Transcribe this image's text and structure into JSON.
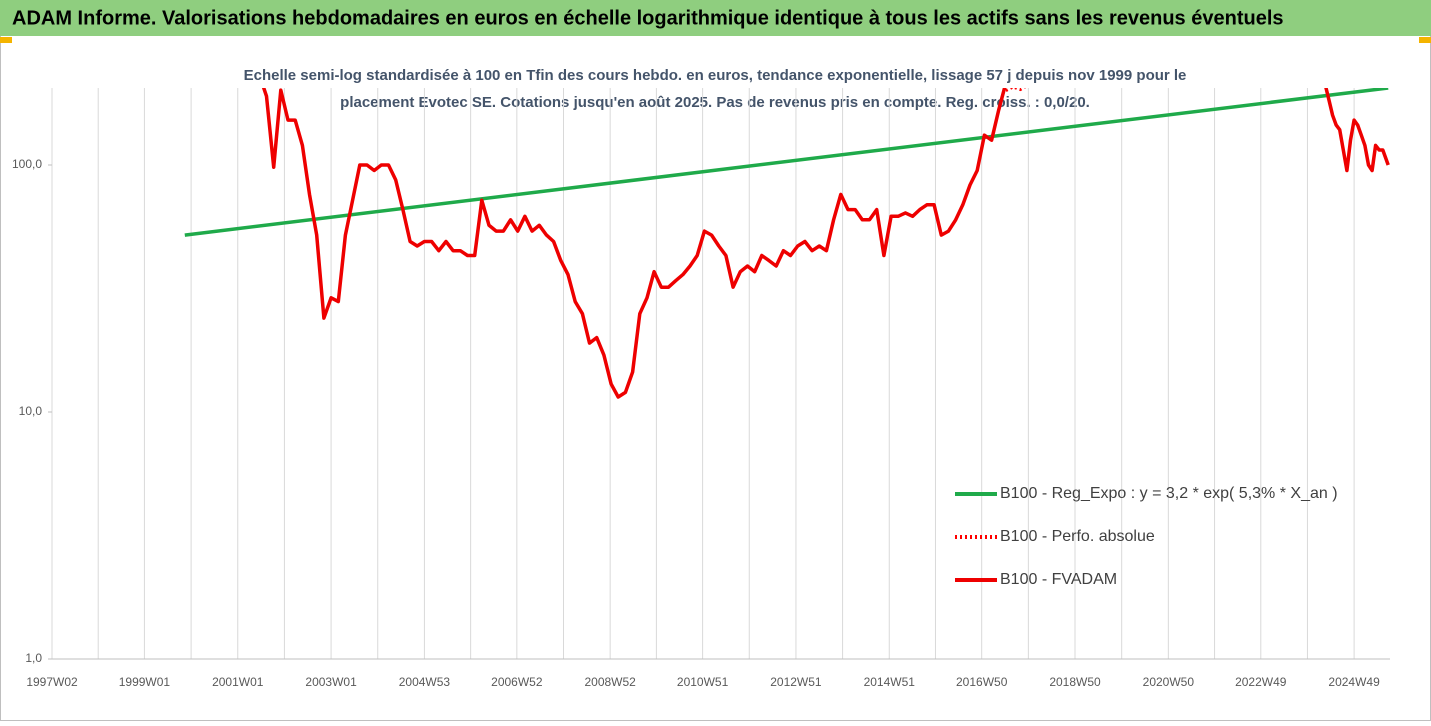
{
  "chart_data": {
    "type": "line",
    "title": "ADAM Informe. Valorisations hebdomadaires en euros en échelle logarithmique identique à tous les actifs sans les revenus éventuels",
    "subtitle": [
      "Echelle semi-log standardisée à 100 en Tfin des cours hebdo. en euros, tendance exponentielle, lissage 57 j depuis nov 1999 pour le",
      "placement Evotec SE. Cotations jusqu'en août 2025. Pas de revenus pris en compte. Reg. croiss. : 0,0/20."
    ],
    "log_y": true,
    "grid": "x",
    "legend": "lower right",
    "xlim": [
      "1997W02",
      "2025W37"
    ],
    "xticks": [
      "1997W02",
      "1999W01",
      "2001W01",
      "2003W01",
      "2004W53",
      "2006W52",
      "2008W52",
      "2010W51",
      "2012W51",
      "2014W51",
      "2016W50",
      "2018W50",
      "2020W50",
      "2022W49",
      "2024W49"
    ],
    "ylim": [
      1,
      205
    ],
    "yticks": [
      {
        "value": 1,
        "label": "1,0"
      },
      {
        "value": 10,
        "label": "10,0"
      },
      {
        "value": 100,
        "label": "100,0"
      }
    ],
    "series": [
      {
        "name": "B100 - Reg_Expo : y = 3,2 * exp( 5,3% *  X_an )",
        "color": "#1faa4a",
        "style": "solid",
        "x": [
          "1999W46",
          "2025W35"
        ],
        "values": [
          52,
          205
        ]
      },
      {
        "name": "B100 - Perfo. absolue",
        "color": "#ff0000",
        "style": "dotted",
        "x": [
          "2017W25",
          "2017W33",
          "2017W41",
          "2017W49"
        ],
        "values": [
          200,
          207,
          202,
          210
        ]
      },
      {
        "name": "B100 - FVADAM",
        "color": "#ee0000",
        "style": "solid",
        "x": [
          "2001W29",
          "2001W33",
          "2001W41",
          "2001W49",
          "2002W05",
          "2002W13",
          "2002W21",
          "2002W29",
          "2002W37",
          "2002W45",
          "2003W01",
          "2003W09",
          "2003W17",
          "2003W25",
          "2003W33",
          "2003W41",
          "2003W49",
          "2004W05",
          "2004W13",
          "2004W21",
          "2004W29",
          "2004W37",
          "2004W45",
          "2005W01",
          "2005W09",
          "2005W17",
          "2005W25",
          "2005W33",
          "2005W41",
          "2005W49",
          "2006W05",
          "2006W13",
          "2006W21",
          "2006W29",
          "2006W37",
          "2006W45",
          "2007W01",
          "2007W09",
          "2007W17",
          "2007W25",
          "2007W33",
          "2007W41",
          "2007W49",
          "2008W05",
          "2008W13",
          "2008W21",
          "2008W29",
          "2008W37",
          "2008W45",
          "2009W01",
          "2009W09",
          "2009W17",
          "2009W25",
          "2009W33",
          "2009W41",
          "2009W49",
          "2010W05",
          "2010W13",
          "2010W21",
          "2010W29",
          "2010W37",
          "2010W45",
          "2011W01",
          "2011W09",
          "2011W17",
          "2011W25",
          "2011W33",
          "2011W41",
          "2011W49",
          "2012W05",
          "2012W13",
          "2012W21",
          "2012W29",
          "2012W37",
          "2012W45",
          "2013W01",
          "2013W09",
          "2013W17",
          "2013W25",
          "2013W33",
          "2013W41",
          "2013W49",
          "2014W05",
          "2014W13",
          "2014W21",
          "2014W29",
          "2014W37",
          "2014W45",
          "2015W01",
          "2015W09",
          "2015W17",
          "2015W25",
          "2015W33",
          "2015W41",
          "2015W49",
          "2016W05",
          "2016W13",
          "2016W21",
          "2016W29",
          "2016W37",
          "2016W45",
          "2017W01",
          "2017W09",
          "2017W17",
          "2017W25",
          "2024W13",
          "2024W17",
          "2024W21",
          "2024W25",
          "2024W29",
          "2024W33",
          "2024W37",
          "2024W41",
          "2024W45",
          "2024W49",
          "2025W01",
          "2025W05",
          "2025W09",
          "2025W13",
          "2025W17",
          "2025W21",
          "2025W25",
          "2025W29",
          "2025W35"
        ],
        "values": [
          210,
          190,
          98,
          201,
          152,
          152,
          120,
          76,
          52,
          24,
          29,
          28,
          52,
          72,
          100,
          100,
          95,
          100,
          100,
          87,
          66,
          49,
          47,
          49,
          49,
          45,
          49,
          45,
          45,
          43,
          43,
          72,
          57,
          54,
          54,
          60,
          54,
          62,
          54,
          57,
          52,
          49,
          41,
          36,
          28,
          25,
          19,
          20,
          17,
          13,
          11.5,
          12,
          14.5,
          25,
          29,
          37,
          32,
          32,
          34,
          36,
          39,
          43,
          54,
          52,
          47,
          43,
          32,
          37,
          39,
          37,
          43,
          41,
          39,
          45,
          43,
          47,
          49,
          45,
          47,
          45,
          60,
          76,
          66,
          66,
          60,
          60,
          66,
          43,
          62,
          62,
          64,
          62,
          66,
          69,
          69,
          52,
          54,
          60,
          69,
          83,
          95,
          132,
          126,
          167,
          215,
          null,
          210,
          183,
          159,
          145,
          139,
          115,
          95,
          126,
          152,
          145,
          132,
          120,
          100,
          95,
          120,
          115,
          115,
          100
        ]
      }
    ]
  }
}
